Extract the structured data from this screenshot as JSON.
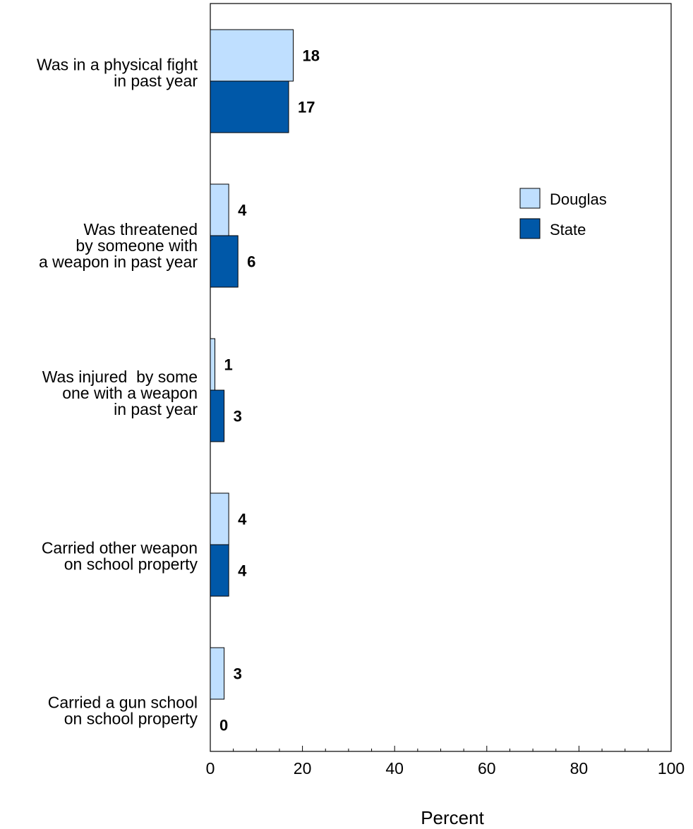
{
  "chart_data": {
    "type": "bar",
    "orientation": "horizontal",
    "categories": [
      [
        "Was in a physical fight",
        "in past year"
      ],
      [
        "Was threatened",
        "by someone with",
        " a weapon in past year"
      ],
      [
        "Was injured  by some",
        "one with a weapon",
        "in past year"
      ],
      [
        "Carried other weapon",
        "on school property"
      ],
      [
        "Carried a gun school",
        "on school property"
      ]
    ],
    "series": [
      {
        "name": "Douglas",
        "color": "#bfdfff",
        "values": [
          18,
          4,
          1,
          4,
          3
        ]
      },
      {
        "name": "State",
        "color": "#0058a8",
        "values": [
          17,
          6,
          3,
          4,
          0
        ]
      }
    ],
    "xlabel": "Percent",
    "xlim": [
      0,
      100
    ],
    "xticks": [
      "0",
      "20",
      "40",
      "60",
      "80",
      "100"
    ],
    "legend_position": "upper-right",
    "grid": false
  }
}
